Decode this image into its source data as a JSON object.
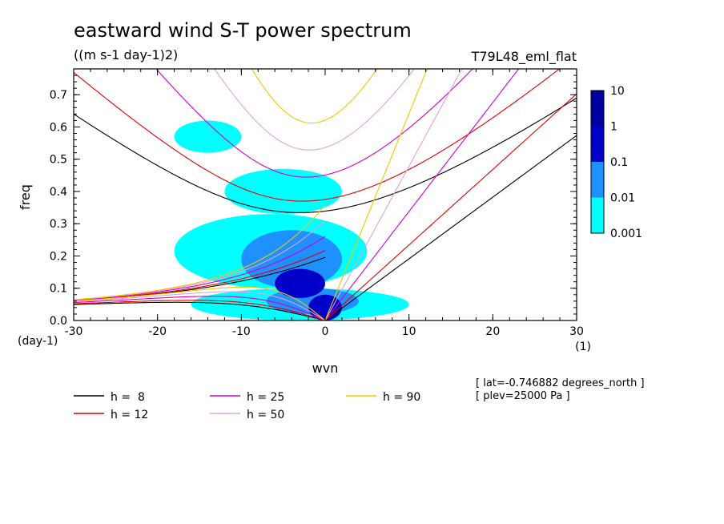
{
  "chart_data": {
    "type": "heatmap",
    "title": "eastward wind S-T power spectrum",
    "units": "((m s-1 day-1)2)",
    "model": "T79L48_eml_flat",
    "xlabel": "wvn",
    "ylabel": "freq",
    "x_unit": "(1)",
    "y_unit": "(day-1)",
    "xlim": [
      -30,
      30
    ],
    "ylim": [
      0,
      0.78
    ],
    "x_ticks": [
      "-30",
      "-20",
      "-10",
      "0",
      "10",
      "20",
      "30"
    ],
    "y_ticks": [
      "0.0",
      "0.1",
      "0.2",
      "0.3",
      "0.4",
      "0.5",
      "0.6",
      "0.7"
    ],
    "colorbar": {
      "levels": [
        "0.001",
        "0.01",
        "0.1",
        "1",
        "10"
      ],
      "colors": [
        "#00ffff",
        "#1e90ff",
        "#0000c8",
        "#0000a0",
        "#4b00b4"
      ]
    },
    "info": [
      "[ lat=-0.746882 degrees_north ]",
      "[ plev=25000 Pa ]"
    ],
    "dispersion_legend": [
      {
        "label": "h =  8",
        "h": 8,
        "color": "#000000"
      },
      {
        "label": "h = 12",
        "h": 12,
        "color": "#e00000"
      },
      {
        "label": "h = 25",
        "h": 25,
        "color": "#cc00cc"
      },
      {
        "label": "h = 50",
        "h": 50,
        "color": "#e0a0e0"
      },
      {
        "label": "h = 90",
        "h": 90,
        "color": "#f0c800"
      }
    ],
    "power_regions": [
      {
        "level": 0,
        "k_min": -18,
        "k_max": 5,
        "f_min": 0.1,
        "f_max": 0.33
      },
      {
        "level": 0,
        "k_min": -12,
        "k_max": 2,
        "f_min": 0.33,
        "f_max": 0.47
      },
      {
        "level": 0,
        "k_min": -16,
        "k_max": 10,
        "f_min": 0.0,
        "f_max": 0.1
      },
      {
        "level": 0,
        "k_min": -18,
        "k_max": -10,
        "f_min": 0.52,
        "f_max": 0.62
      },
      {
        "level": 1,
        "k_min": -10,
        "k_max": 2,
        "f_min": 0.1,
        "f_max": 0.28
      },
      {
        "level": 1,
        "k_min": -7,
        "k_max": 4,
        "f_min": 0.02,
        "f_max": 0.1
      },
      {
        "level": 2,
        "k_min": -6,
        "k_max": 0,
        "f_min": 0.07,
        "f_max": 0.16
      },
      {
        "level": 2,
        "k_min": -2,
        "k_max": 2,
        "f_min": 0.0,
        "f_max": 0.08
      }
    ]
  }
}
